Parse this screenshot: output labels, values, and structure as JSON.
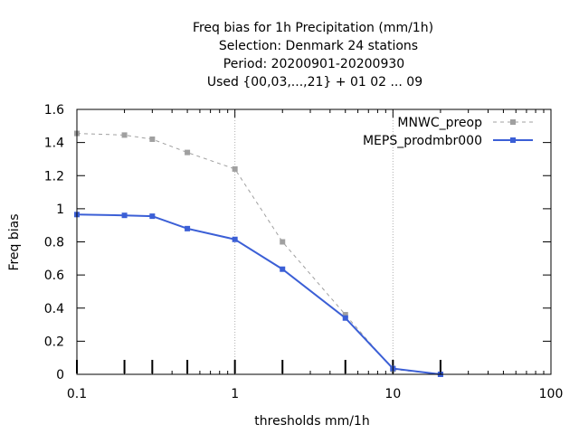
{
  "chart_data": {
    "type": "line",
    "title_lines": [
      "Freq bias  for 1h Precipitation (mm/1h)",
      "Selection: Denmark     24 stations",
      "Period: 20200901-20200930",
      "Used {00,03,...,21} + 01 02 ... 09"
    ],
    "xlabel": "thresholds mm/1h",
    "ylabel": "Freq bias",
    "xscale": "log",
    "xlim": [
      0.1,
      100
    ],
    "ylim": [
      0,
      1.6
    ],
    "x_ticks": [
      0.1,
      1,
      10,
      100
    ],
    "x_tick_labels": [
      "0.1",
      "1",
      "10",
      "100"
    ],
    "y_ticks": [
      0,
      0.2,
      0.4,
      0.6,
      0.8,
      1,
      1.2,
      1.4,
      1.6
    ],
    "y_tick_labels": [
      "0",
      "0.2",
      "0.4",
      "0.6",
      "0.8",
      "1",
      "1.2",
      "1.4",
      "1.6"
    ],
    "grid": "vertical dotted at major x ticks",
    "legend_position": "top-right",
    "threshold_markers": [
      0.1,
      0.2,
      0.3,
      0.5,
      1,
      2,
      5,
      10,
      20
    ],
    "series": [
      {
        "name": "MNWC_preop",
        "color": "#a0a0a0",
        "style": "dashed",
        "x": [
          0.1,
          0.2,
          0.3,
          0.5,
          1,
          2,
          5,
          10,
          20
        ],
        "values": [
          1.455,
          1.445,
          1.42,
          1.34,
          1.24,
          0.8,
          0.36,
          0.03,
          0.0
        ]
      },
      {
        "name": "MEPS_prodmbr000",
        "color": "#3b5fd6",
        "style": "solid",
        "x": [
          0.1,
          0.2,
          0.3,
          0.5,
          1,
          2,
          5,
          10,
          20
        ],
        "values": [
          0.965,
          0.96,
          0.955,
          0.88,
          0.815,
          0.635,
          0.34,
          0.035,
          0.0
        ]
      }
    ]
  }
}
